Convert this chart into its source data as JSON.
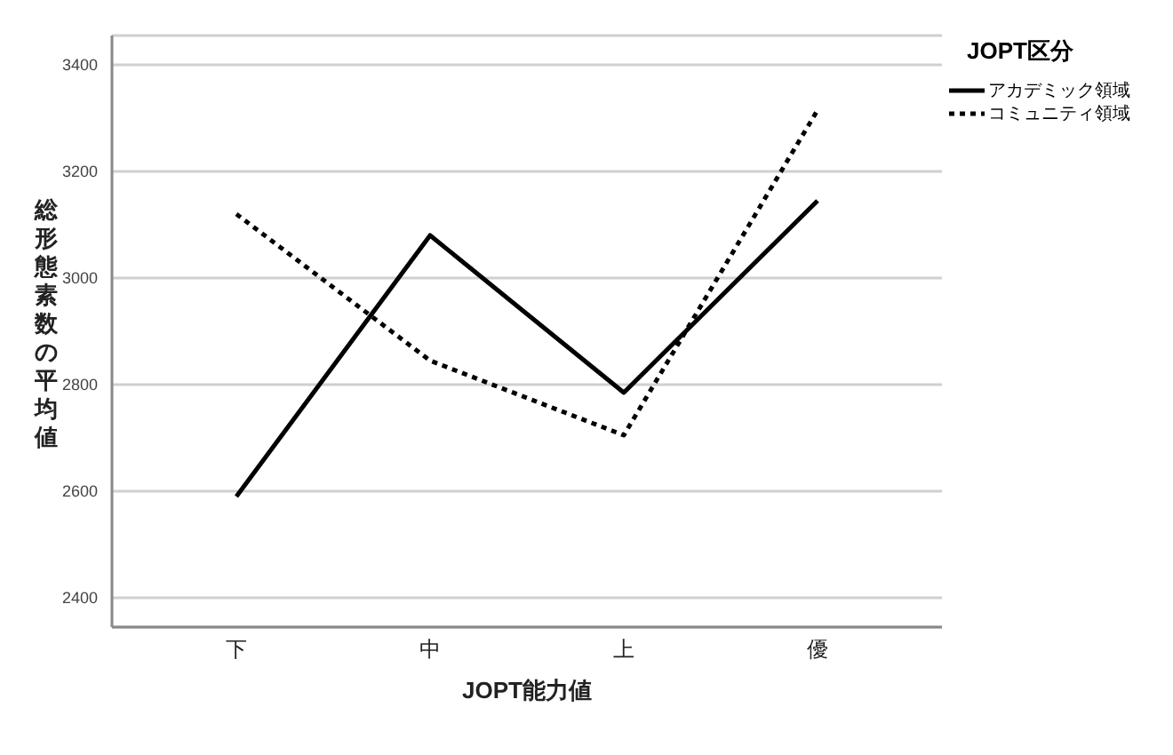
{
  "chart_data": {
    "type": "line",
    "xlabel": "JOPT能力値",
    "ylabel": "総形態素数の平均値",
    "legend_title": "JOPT区分",
    "categories": [
      "下",
      "中",
      "上",
      "優"
    ],
    "series": [
      {
        "name": "アカデミック領域",
        "color": "#000000",
        "values": [
          2590,
          3080,
          2785,
          3145
        ],
        "line_style": "solid"
      },
      {
        "name": "コミュニティ領域",
        "color": "#000000",
        "values": [
          3120,
          2845,
          2705,
          3315
        ],
        "line_style": "dotted"
      }
    ],
    "ylim": [
      2345,
      3455
    ],
    "yticks": [
      2400,
      2600,
      2800,
      3000,
      3200,
      3400
    ],
    "grid": "y",
    "legend": "top right",
    "marker": "none"
  }
}
